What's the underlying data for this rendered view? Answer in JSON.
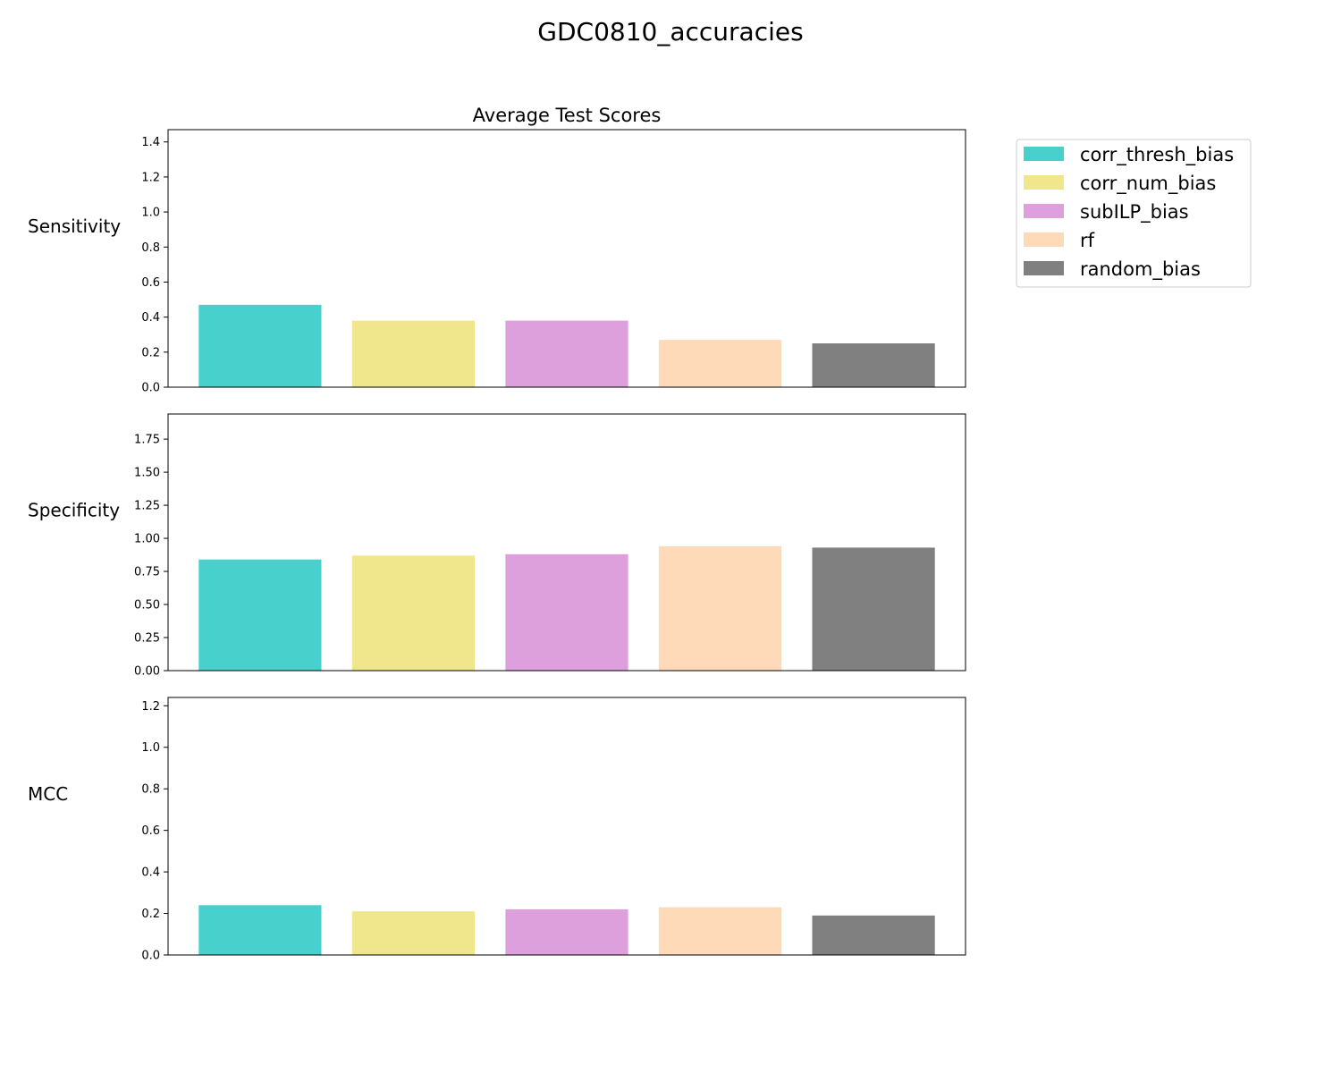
{
  "figure": {
    "suptitle": "GDC0810_accuracies",
    "panel_title": "Average Test Scores"
  },
  "legend": {
    "placement": "upper-right-outside",
    "entries": [
      "corr_thresh_bias",
      "corr_num_bias",
      "subILP_bias",
      "rf",
      "random_bias"
    ]
  },
  "colors": {
    "corr_thresh_bias": "#48d1cc",
    "corr_num_bias": "#f0e68c",
    "subILP_bias": "#dda0dd",
    "rf": "#ffdab9",
    "random_bias": "#808080"
  },
  "chart_data": [
    {
      "type": "bar",
      "ylabel": "Sensitivity",
      "categories": [
        "corr_thresh_bias",
        "corr_num_bias",
        "subILP_bias",
        "rf",
        "random_bias"
      ],
      "values": [
        0.47,
        0.38,
        0.38,
        0.27,
        0.25
      ],
      "ylim": [
        0,
        1.47
      ],
      "yticks": [
        0.0,
        0.2,
        0.4,
        0.6,
        0.8,
        1.0,
        1.2,
        1.4
      ],
      "tick_decimals": 1,
      "grid": false
    },
    {
      "type": "bar",
      "ylabel": "Specificity",
      "categories": [
        "corr_thresh_bias",
        "corr_num_bias",
        "subILP_bias",
        "rf",
        "random_bias"
      ],
      "values": [
        0.84,
        0.87,
        0.88,
        0.94,
        0.93
      ],
      "ylim": [
        0,
        1.94
      ],
      "yticks": [
        0.0,
        0.25,
        0.5,
        0.75,
        1.0,
        1.25,
        1.5,
        1.75
      ],
      "tick_decimals": 2,
      "grid": false
    },
    {
      "type": "bar",
      "ylabel": "MCC",
      "categories": [
        "corr_thresh_bias",
        "corr_num_bias",
        "subILP_bias",
        "rf",
        "random_bias"
      ],
      "values": [
        0.24,
        0.21,
        0.22,
        0.23,
        0.19
      ],
      "ylim": [
        0,
        1.24
      ],
      "yticks": [
        0.0,
        0.2,
        0.4,
        0.6,
        0.8,
        1.0,
        1.2
      ],
      "tick_decimals": 1,
      "grid": false
    }
  ]
}
